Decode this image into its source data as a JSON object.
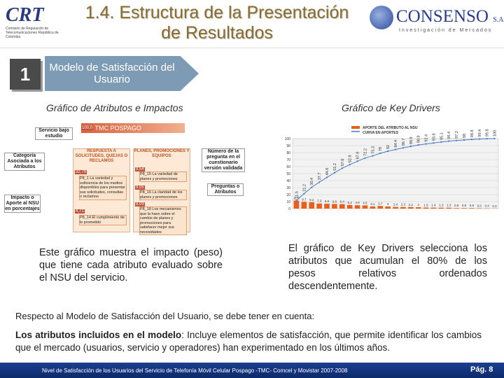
{
  "header": {
    "left_logo": "CRT",
    "left_logo_caption": "Comisión de Regulación de Telecomunicaciones República de Colombia",
    "title": "1.4. Estructura de la Presentación de Resultados",
    "right_logo": "CONSENSO",
    "right_logo_suffix": "S.A",
    "right_logo_caption": "Investigación de Mercados"
  },
  "section": {
    "number": "1",
    "label": "Modelo de Satisfacción del Usuario"
  },
  "left": {
    "subtitle": "Gráfico de Atributos e Impactos",
    "text": "Este gráfico muestra el impacto (peso) que tiene cada atributo evaluado sobre el NSU del servicio."
  },
  "diagram": {
    "legend_service": "Servicio bajo estudio",
    "legend_category": "Categoría Asociada a los Atributos",
    "legend_impact": "Impacto o Aporte al NSU en porcentajes",
    "legend_question": "Número de la pregunta en el cuestionario versión validada",
    "legend_attribute": "Preguntas o Atributos",
    "service_value": "100,0",
    "service": "TMC POSPAGO",
    "categories": [
      {
        "name": "RESPUESTA A SOLICITUDES, QUEJAS O RECLAMOS",
        "attributes": [
          {
            "value": "32,79",
            "label": "P8_1 La variedad y suficiencia de los medios disponibles para presentar sus solicitudes, consultas o reclamos"
          },
          {
            "value": "4,71",
            "label": "P8_14 El cumplimiento de lo prometido"
          }
        ]
      },
      {
        "name": "PLANES, PROMOCIONES Y EQUIPOS",
        "attributes": [
          {
            "value": "9,54",
            "label": "P8_15 La variedad de planes y promociones"
          },
          {
            "value": "9,05",
            "label": "P8_16 La claridad de los planes y promociones"
          },
          {
            "value": "8,09",
            "label": "P8_18 Los mecanismos que la hace sobre el cambio de planes y promociones para satisfacer mejor sus necesidades"
          }
        ]
      }
    ]
  },
  "chart_data": {
    "type": "bar",
    "title": "Gráfico de Key Drivers",
    "ylim": [
      0,
      100
    ],
    "yticks": [
      0,
      10,
      20,
      30,
      40,
      50,
      60,
      70,
      80,
      90,
      100
    ],
    "grid": true,
    "series": [
      {
        "name": "APORTE DEL ATRIBUTO AL NSU",
        "color": "#e8601c",
        "values": [
          11.5,
          9.7,
          9.2,
          7.3,
          6.9,
          6.6,
          6.4,
          5.2,
          4.8,
          4.6,
          3.1,
          3.7,
          3.0,
          2.4,
          2.3,
          2.2,
          2.0,
          1.5,
          1.4,
          1.3,
          1.3,
          0.8,
          0.8,
          0.8,
          0.6,
          0.4,
          0.2
        ]
      },
      {
        "name": "CURVA EN APORTES",
        "color": "#4a7bc8",
        "type": "line",
        "values": [
          11.5,
          21.2,
          30.4,
          37.7,
          44.6,
          51.2,
          57.6,
          62.8,
          67.6,
          72.2,
          75.3,
          79.0,
          82.0,
          84.4,
          86.7,
          88.9,
          90.9,
          92.4,
          93.8,
          95.1,
          96.4,
          97.2,
          98.0,
          98.8,
          99.4,
          99.8,
          100.0
        ]
      }
    ]
  },
  "right": {
    "text": "El gráfico de Key Drivers selecciona los atributos que acumulan el 80% de los pesos relativos ordenados descendentemente."
  },
  "body": {
    "intro": "Respecto al Modelo de Satisfacción del Usuario, se debe tener en cuenta:",
    "term": "Los atributos incluidos en el modelo",
    "definition": ": Incluye elementos de satisfacción, que permite identificar los cambios que el mercado (usuarios, servicio y operadores) han experimentado en los últimos años."
  },
  "footer": {
    "text": "Nivel de Satisfacción de los Usuarios del Servicio de Telefonía Móvil Celular Pospago -TMC- Comcel y Movistar 2007-2008",
    "page": "Pág. 8"
  }
}
